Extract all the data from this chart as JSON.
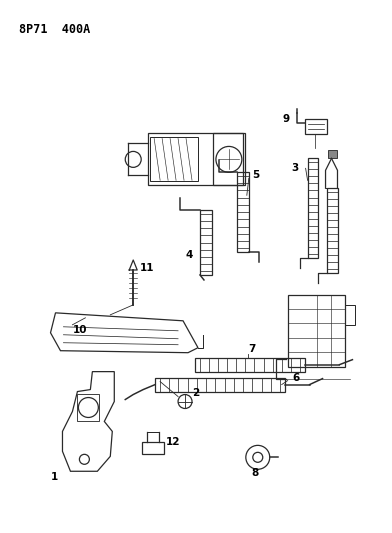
{
  "title": "8P71  400A",
  "bg_color": "#ffffff",
  "line_color": "#2a2a2a",
  "label_color": "#000000",
  "figsize": [
    3.92,
    5.33
  ],
  "dpi": 100
}
